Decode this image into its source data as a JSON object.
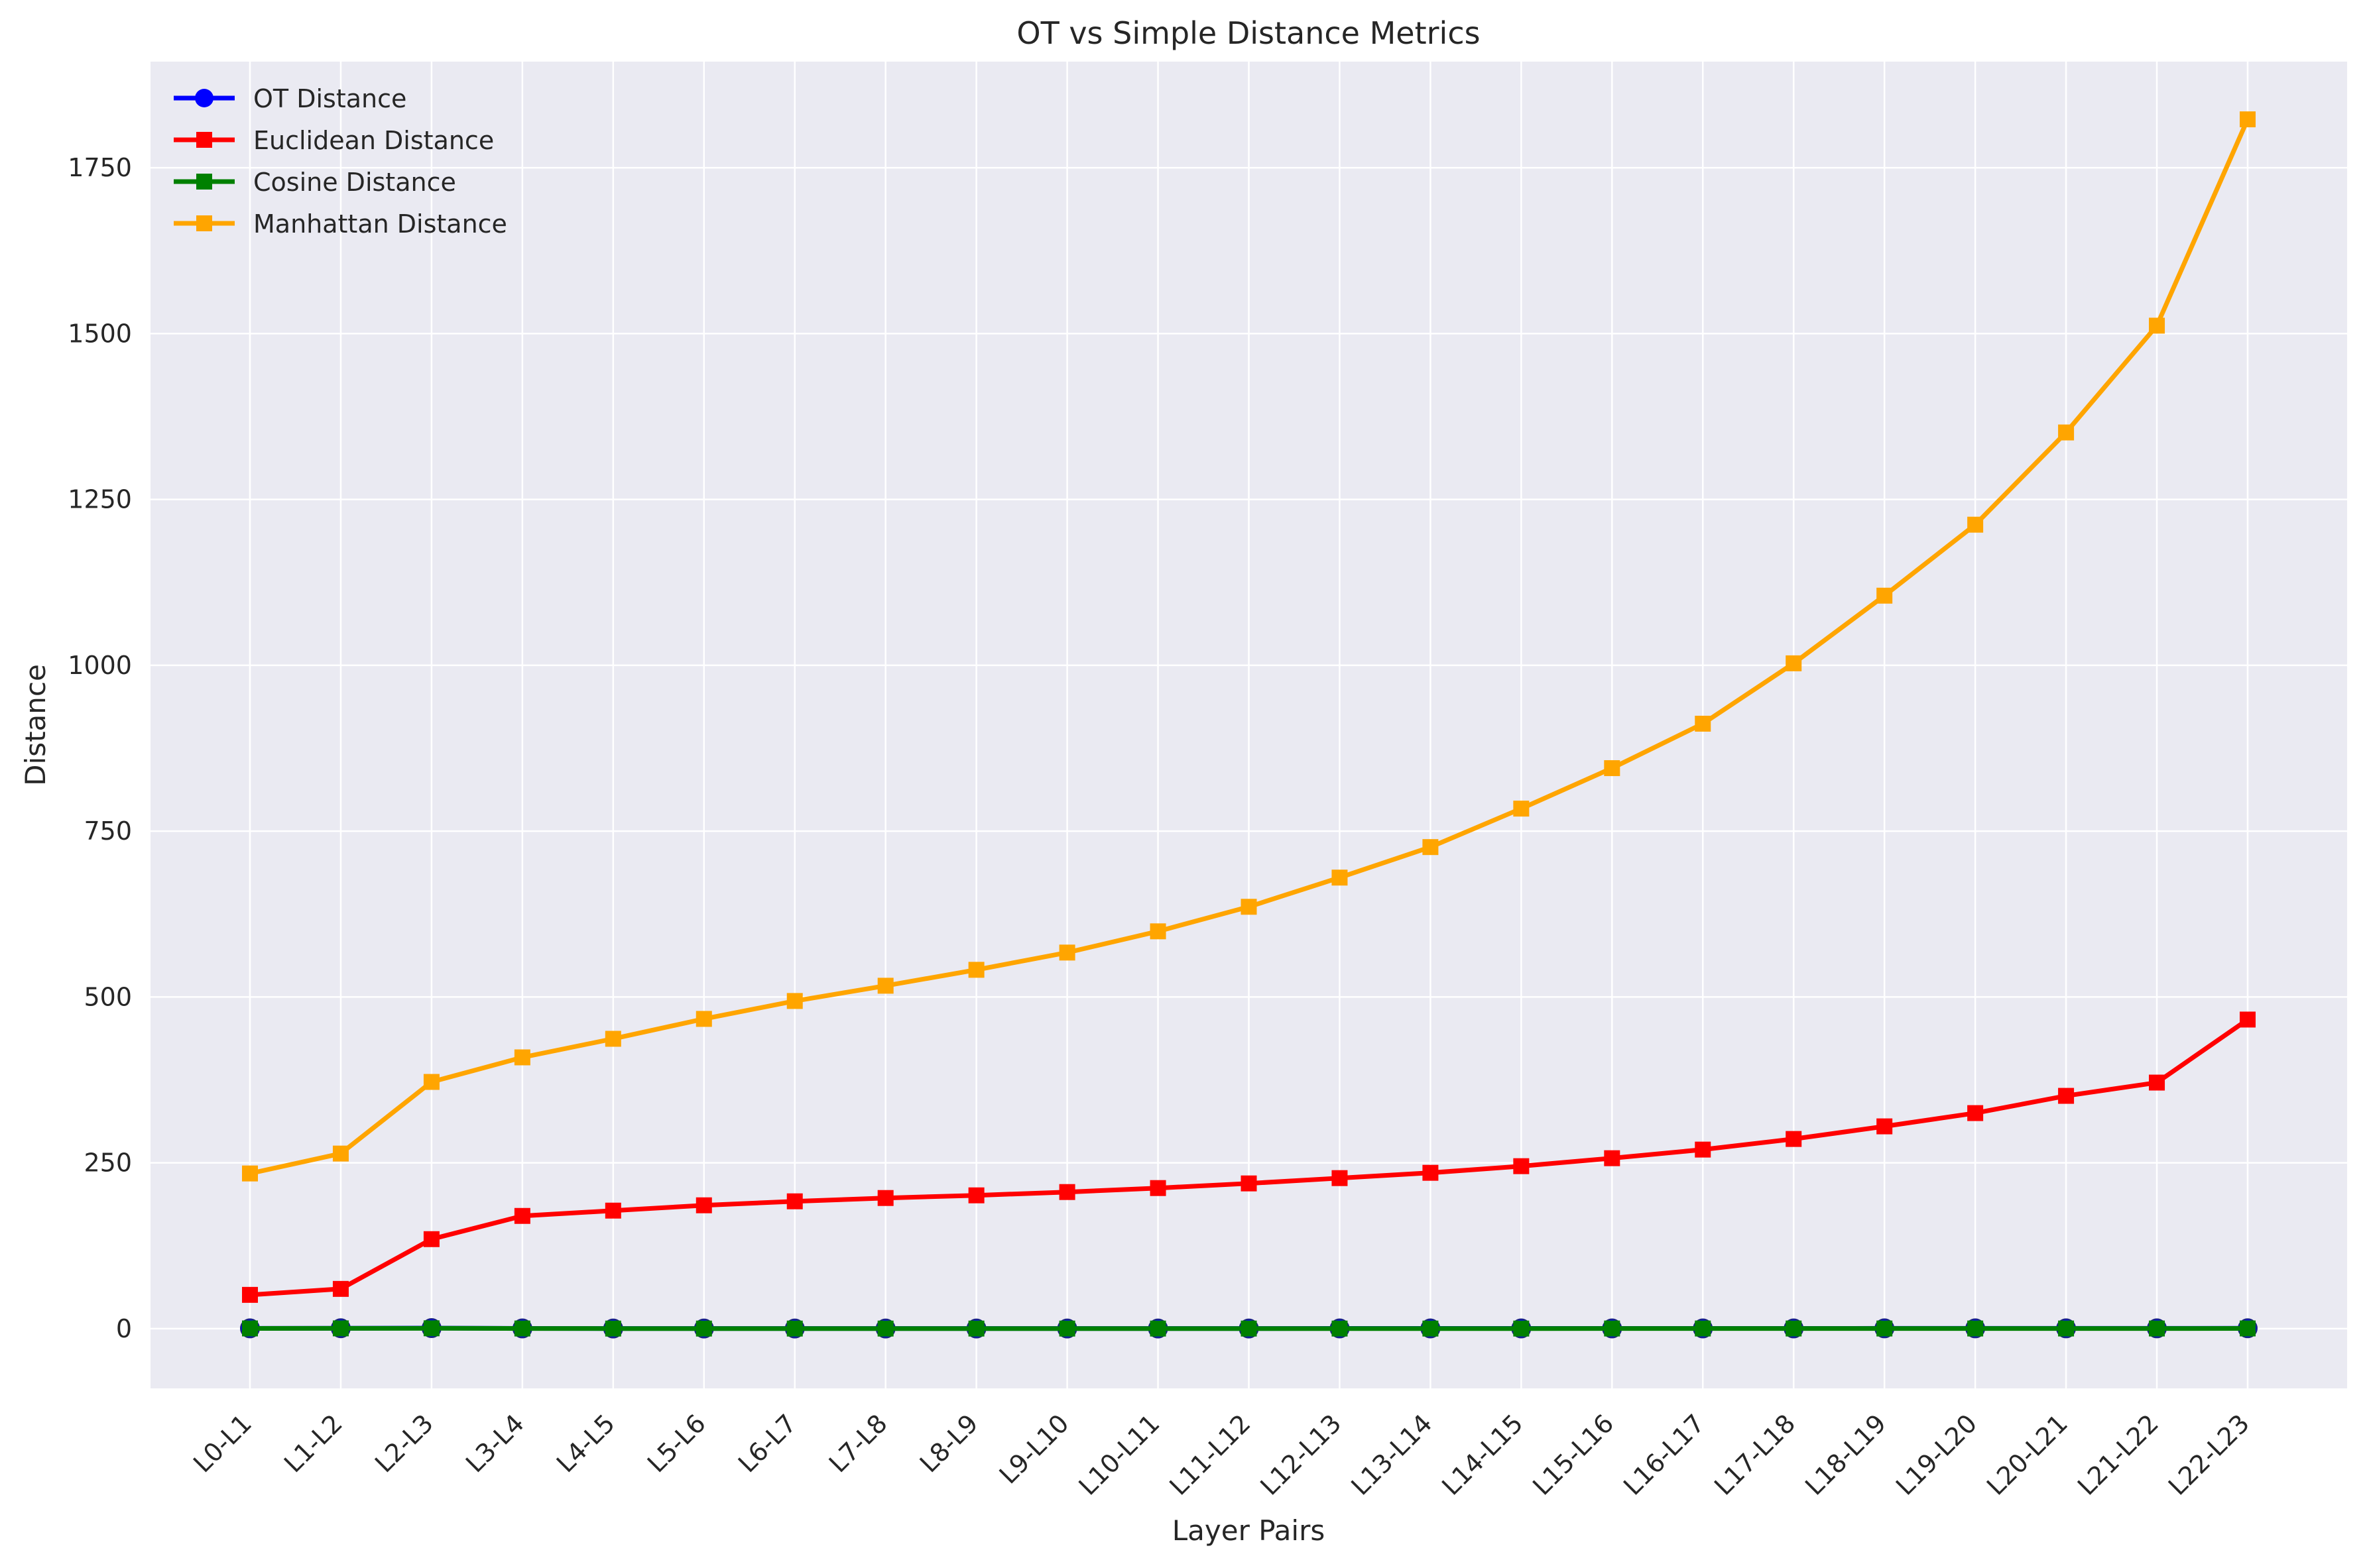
{
  "chart_data": {
    "type": "line",
    "title": "OT vs Simple Distance Metrics",
    "xlabel": "Layer Pairs",
    "ylabel": "Distance",
    "categories": [
      "L0-L1",
      "L1-L2",
      "L2-L3",
      "L3-L4",
      "L4-L5",
      "L5-L6",
      "L6-L7",
      "L7-L8",
      "L8-L9",
      "L9-L10",
      "L10-L11",
      "L11-L12",
      "L12-L13",
      "L13-L14",
      "L14-L15",
      "L15-L16",
      "L16-L17",
      "L17-L18",
      "L18-L19",
      "L19-L20",
      "L20-L21",
      "L21-L22",
      "L22-L23"
    ],
    "ylim": [
      -90,
      1910
    ],
    "yticks": [
      0,
      250,
      500,
      750,
      1000,
      1250,
      1500,
      1750
    ],
    "grid": true,
    "legend_position": "top-left",
    "series": [
      {
        "name": "OT Distance",
        "color": "#0000ff",
        "marker": "circle",
        "values": [
          0.5,
          0.7,
          0.9,
          0.4,
          0.3,
          0.3,
          0.3,
          0.3,
          0.3,
          0.3,
          0.3,
          0.3,
          0.4,
          0.4,
          0.4,
          0.4,
          0.4,
          0.4,
          0.5,
          0.5,
          0.5,
          0.5,
          0.6
        ]
      },
      {
        "name": "Euclidean Distance",
        "color": "#ff0000",
        "marker": "square",
        "values": [
          51,
          60,
          135,
          170,
          178,
          186,
          192,
          197,
          201,
          206,
          212,
          219,
          227,
          235,
          245,
          257,
          270,
          286,
          305,
          325,
          351,
          371,
          466
        ]
      },
      {
        "name": "Cosine Distance",
        "color": "#008000",
        "marker": "square",
        "values": [
          0.4,
          0.5,
          0.6,
          0.3,
          0.2,
          0.2,
          0.2,
          0.2,
          0.2,
          0.2,
          0.2,
          0.2,
          0.2,
          0.2,
          0.2,
          0.3,
          0.3,
          0.3,
          0.3,
          0.3,
          0.3,
          0.3,
          0.4
        ]
      },
      {
        "name": "Manhattan Distance",
        "color": "#ffa500",
        "marker": "square",
        "values": [
          234,
          264,
          372,
          409,
          437,
          467,
          494,
          517,
          541,
          567,
          599,
          636,
          680,
          726,
          784,
          845,
          912,
          1003,
          1105,
          1212,
          1351,
          1512,
          1823
        ]
      }
    ]
  }
}
